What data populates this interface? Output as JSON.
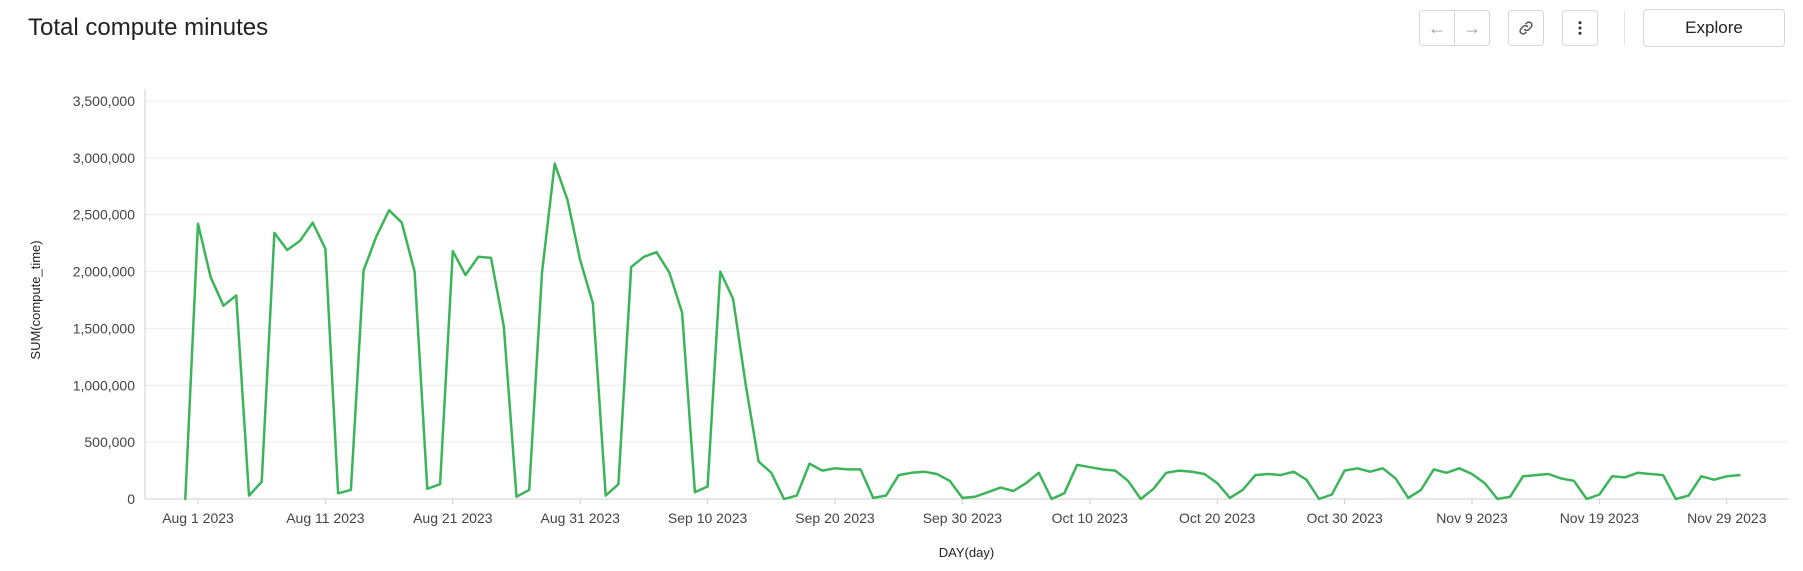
{
  "title": "Total compute minutes",
  "toolbar": {
    "explore_label": "Explore",
    "back_glyph": "←",
    "forward_glyph": "→"
  },
  "colors": {
    "line": "#3cb55a",
    "grid": "#ececec",
    "axis": "#cfcfcf"
  },
  "icons": [
    "arrow-left-icon",
    "arrow-right-icon",
    "link-icon",
    "more-vertical-icon"
  ],
  "chart_data": {
    "type": "line",
    "title": "Total compute minutes",
    "xlabel": "DAY(day)",
    "ylabel": "SUM(compute_time)",
    "ylim": [
      0,
      3500000
    ],
    "y_ticks": [
      0,
      500000,
      1000000,
      1500000,
      2000000,
      2500000,
      3000000,
      3500000
    ],
    "y_tick_labels": [
      "0",
      "500,000",
      "1,000,000",
      "1,500,000",
      "2,000,000",
      "2,500,000",
      "3,000,000",
      "3,500,000"
    ],
    "x_tick_labels": [
      "Aug 1 2023",
      "Aug 11 2023",
      "Aug 21 2023",
      "Aug 31 2023",
      "Sep 10 2023",
      "Sep 20 2023",
      "Sep 30 2023",
      "Oct 10 2023",
      "Oct 20 2023",
      "Oct 30 2023",
      "Nov 9 2023",
      "Nov 19 2023",
      "Nov 29 2023"
    ],
    "x_start": "Jul 31 2023",
    "grid": true,
    "series": [
      {
        "values": [
          0,
          2420000,
          1950000,
          1700000,
          1790000,
          30000,
          150000,
          2340000,
          2190000,
          2270000,
          2430000,
          2200000,
          50000,
          80000,
          2010000,
          2310000,
          2540000,
          2430000,
          2000000,
          90000,
          130000,
          2180000,
          1970000,
          2130000,
          2120000,
          1520000,
          20000,
          80000,
          1990000,
          2950000,
          2630000,
          2100000,
          1720000,
          30000,
          130000,
          2040000,
          2130000,
          2170000,
          1990000,
          1640000,
          60000,
          110000,
          2000000,
          1760000,
          1000000,
          330000,
          230000,
          0,
          30000,
          310000,
          250000,
          270000,
          260000,
          260000,
          10000,
          30000,
          210000,
          230000,
          240000,
          220000,
          160000,
          10000,
          20000,
          60000,
          100000,
          70000,
          140000,
          230000,
          0,
          50000,
          300000,
          280000,
          260000,
          250000,
          160000,
          0,
          90000,
          230000,
          250000,
          240000,
          220000,
          140000,
          10000,
          80000,
          210000,
          220000,
          210000,
          240000,
          170000,
          0,
          40000,
          250000,
          270000,
          240000,
          270000,
          180000,
          10000,
          80000,
          260000,
          230000,
          270000,
          220000,
          140000,
          0,
          20000,
          200000,
          210000,
          220000,
          180000,
          160000,
          0,
          40000,
          200000,
          190000,
          230000,
          220000,
          210000,
          0,
          30000,
          200000,
          170000,
          200000,
          210000
        ]
      }
    ]
  }
}
